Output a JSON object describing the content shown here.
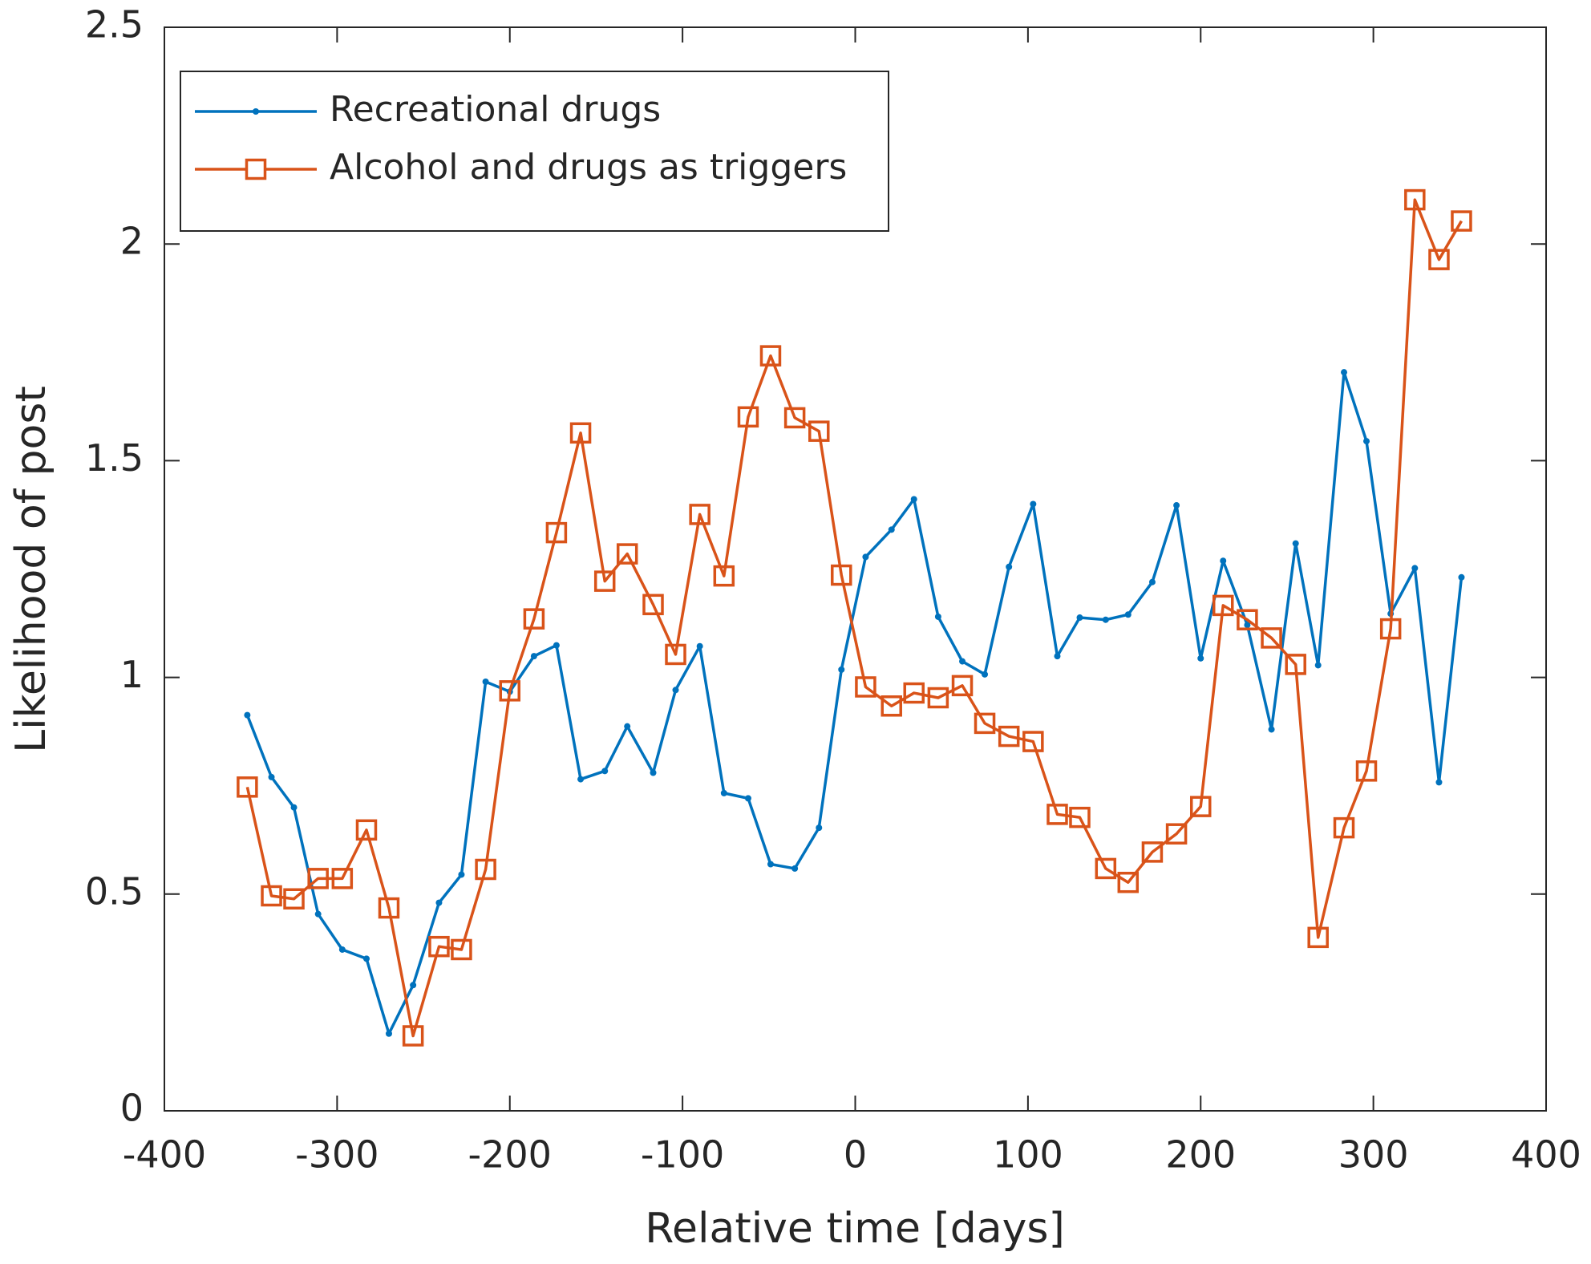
{
  "chart_data": {
    "type": "line",
    "xlabel": "Relative time [days]",
    "ylabel": "Likelihood of post",
    "x": [
      -352,
      -338,
      -325,
      -311,
      -297,
      -283,
      -270,
      -256,
      -241,
      -228,
      -214,
      -200,
      -186,
      -173,
      -159,
      -145,
      -132,
      -117,
      -104,
      -90,
      -76,
      -62,
      -49,
      -35,
      -21,
      -8,
      6,
      21,
      34,
      48,
      62,
      75,
      89,
      103,
      117,
      130,
      145,
      158,
      172,
      186,
      200,
      213,
      227,
      241,
      255,
      268,
      283,
      296,
      310,
      324,
      338,
      351
    ],
    "series": [
      {
        "name": "Recreational drugs",
        "color": "#0072bd",
        "marker": "dot",
        "values": [
          0.913,
          0.77,
          0.7,
          0.454,
          0.372,
          0.351,
          0.178,
          0.29,
          0.48,
          0.545,
          0.99,
          0.967,
          1.049,
          1.074,
          0.765,
          0.784,
          0.887,
          0.78,
          0.971,
          1.072,
          0.733,
          0.721,
          0.569,
          0.559,
          0.653,
          1.018,
          1.278,
          1.341,
          1.411,
          1.14,
          1.037,
          1.007,
          1.255,
          1.4,
          1.049,
          1.138,
          1.133,
          1.145,
          1.22,
          1.397,
          1.044,
          1.269,
          1.121,
          0.88,
          1.309,
          1.028,
          1.704,
          1.545,
          1.147,
          1.252,
          0.758,
          1.231
        ]
      },
      {
        "name": "Alcohol and drugs as triggers",
        "color": "#d95319",
        "marker": "square",
        "values": [
          0.747,
          0.496,
          0.489,
          0.536,
          0.536,
          0.648,
          0.468,
          0.173,
          0.379,
          0.372,
          0.557,
          0.969,
          1.135,
          1.334,
          1.564,
          1.222,
          1.285,
          1.168,
          1.053,
          1.376,
          1.234,
          1.601,
          1.742,
          1.599,
          1.568,
          1.236,
          0.978,
          0.934,
          0.964,
          0.953,
          0.981,
          0.894,
          0.864,
          0.852,
          0.684,
          0.677,
          0.559,
          0.527,
          0.597,
          0.639,
          0.702,
          1.166,
          1.133,
          1.091,
          1.03,
          0.4,
          0.653,
          0.784,
          1.112,
          2.102,
          1.964,
          2.053
        ]
      }
    ],
    "xlim": [
      -400,
      400
    ],
    "xticks": [
      -400,
      -300,
      -200,
      -100,
      0,
      100,
      200,
      300,
      400
    ],
    "ylim": [
      0,
      2.5
    ],
    "yticks": [
      0,
      0.5,
      1,
      1.5,
      2,
      2.5
    ],
    "grid": false,
    "legend": "upper left"
  }
}
